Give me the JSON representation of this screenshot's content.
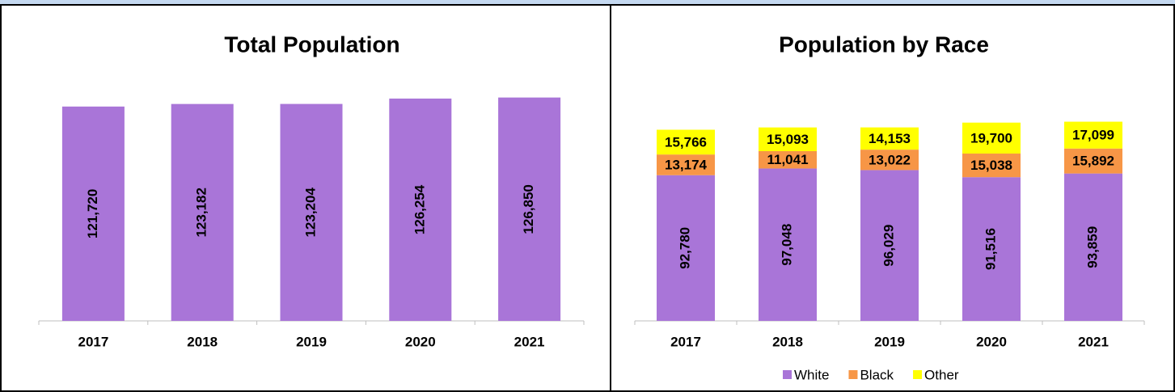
{
  "chart_data": [
    {
      "type": "bar",
      "title": "Total Population",
      "categories": [
        "2017",
        "2018",
        "2019",
        "2020",
        "2021"
      ],
      "values": [
        121720,
        123182,
        123204,
        126254,
        126850
      ],
      "value_labels": [
        "121,720",
        "123,182",
        "123,204",
        "126,254",
        "126,850"
      ],
      "color": "#a975d8",
      "ylim": [
        0,
        140000
      ]
    },
    {
      "type": "stacked_bar",
      "title": "Population by Race",
      "categories": [
        "2017",
        "2018",
        "2019",
        "2020",
        "2021"
      ],
      "series": [
        {
          "name": "White",
          "color": "#a975d8",
          "values": [
            92780,
            97048,
            96029,
            91516,
            93859
          ],
          "value_labels": [
            "92,780",
            "97,048",
            "96,029",
            "91,516",
            "93,859"
          ]
        },
        {
          "name": "Black",
          "color": "#f79646",
          "values": [
            13174,
            11041,
            13022,
            15038,
            15892
          ],
          "value_labels": [
            "13,174",
            "11,041",
            "13,022",
            "15,038",
            "15,892"
          ]
        },
        {
          "name": "Other",
          "color": "#ffff00",
          "values": [
            15766,
            15093,
            14153,
            19700,
            17099
          ],
          "value_labels": [
            "15,766",
            "15,093",
            "14,153",
            "19,700",
            "17,099"
          ]
        }
      ],
      "ylim": [
        0,
        140000
      ],
      "legend": "bottom"
    }
  ]
}
